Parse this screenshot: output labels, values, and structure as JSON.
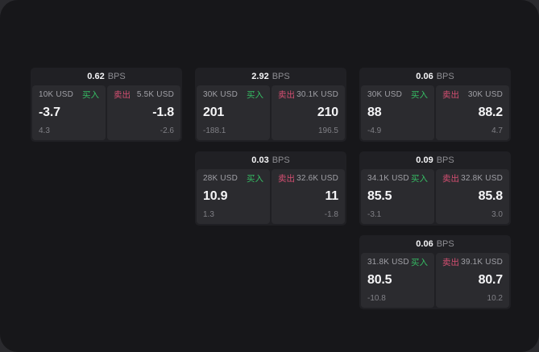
{
  "labels": {
    "bps_unit": "BPS",
    "buy": "买入",
    "sell": "卖出"
  },
  "colors": {
    "buy_green": "#36bd64",
    "sell_red": "#d54f72",
    "page_bg": "#17171a",
    "card_bg": "#202024",
    "tile_bg": "#2b2b2f"
  },
  "cards": [
    {
      "bps": "0.62",
      "buy": {
        "size": "10K USD",
        "price": "-3.7",
        "delta": "4.3"
      },
      "sell": {
        "size": "5.5K USD",
        "price": "-1.8",
        "delta": "-2.6"
      }
    },
    {
      "bps": "2.92",
      "buy": {
        "size": "30K USD",
        "price": "201",
        "delta": "-188.1"
      },
      "sell": {
        "size": "30.1K USD",
        "price": "210",
        "delta": "196.5"
      }
    },
    {
      "bps": "0.06",
      "buy": {
        "size": "30K USD",
        "price": "88",
        "delta": "-4.9"
      },
      "sell": {
        "size": "30K USD",
        "price": "88.2",
        "delta": "4.7"
      }
    },
    {
      "bps": "0.03",
      "buy": {
        "size": "28K USD",
        "price": "10.9",
        "delta": "1.3"
      },
      "sell": {
        "size": "32.6K USD",
        "price": "11",
        "delta": "-1.8"
      }
    },
    {
      "bps": "0.09",
      "buy": {
        "size": "34.1K USD",
        "price": "85.5",
        "delta": "-3.1"
      },
      "sell": {
        "size": "32.8K USD",
        "price": "85.8",
        "delta": "3.0"
      }
    },
    {
      "bps": "0.06",
      "buy": {
        "size": "31.8K USD",
        "price": "80.5",
        "delta": "-10.8"
      },
      "sell": {
        "size": "39.1K USD",
        "price": "80.7",
        "delta": "10.2"
      }
    }
  ]
}
